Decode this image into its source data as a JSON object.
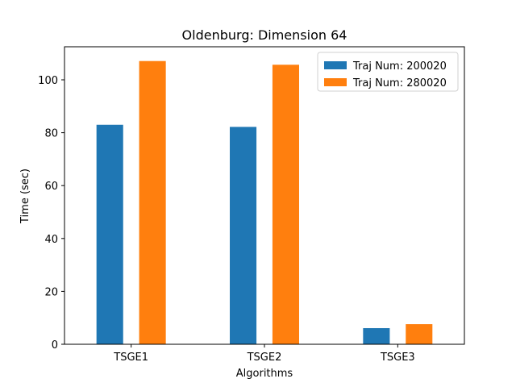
{
  "chart_data": {
    "type": "bar",
    "title": "Oldenburg: Dimension 64",
    "xlabel": "Algorithms",
    "ylabel": "Time (sec)",
    "categories": [
      "TSGE1",
      "TSGE2",
      "TSGE3"
    ],
    "series": [
      {
        "name": "Traj Num: 200020",
        "values": [
          83.0,
          82.2,
          6.1
        ],
        "color": "#1f77b4"
      },
      {
        "name": "Traj Num: 280020",
        "values": [
          107.1,
          105.7,
          7.6
        ],
        "color": "#ff7f0e"
      }
    ],
    "ylim": [
      0,
      112.5
    ],
    "yticks": [
      0,
      20,
      40,
      60,
      80,
      100
    ],
    "grid": false,
    "legend_position": "top-right"
  }
}
